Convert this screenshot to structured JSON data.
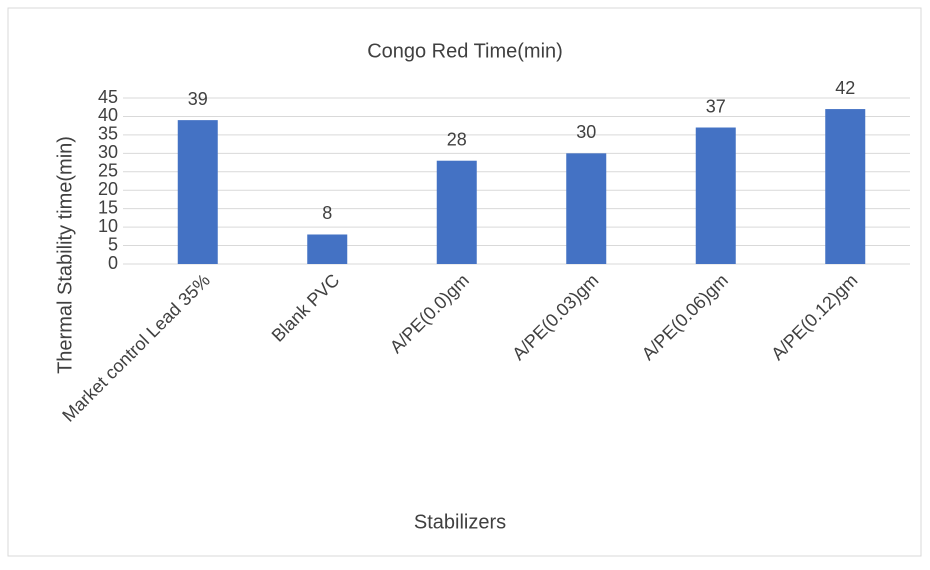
{
  "chart_data": {
    "type": "bar",
    "title": "Congo Red Time(min)",
    "x_label": "Stabilizers",
    "y_label": "Thermal Stability time(min)",
    "categories": [
      "Market control Lead 35%",
      "Blank PVC",
      "A/PE(0.0)gm",
      "A/PE(0.03)gm",
      "A/PE(0.06)gm",
      "A/PE(0.12)gm"
    ],
    "values": [
      39,
      8,
      28,
      30,
      37,
      42
    ],
    "color": "#4472c4",
    "ylim": [
      0,
      45
    ],
    "yticks": [
      0,
      5,
      10,
      15,
      20,
      25,
      30,
      35,
      40,
      45
    ],
    "grid": true
  }
}
